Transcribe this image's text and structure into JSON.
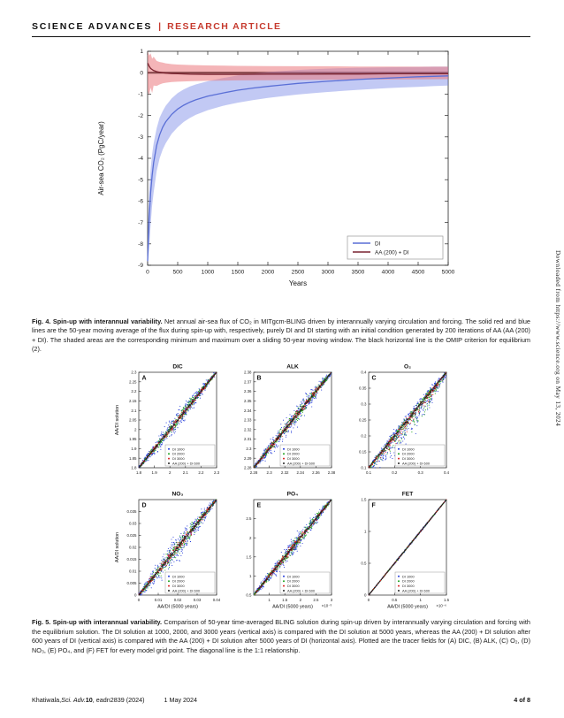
{
  "header": {
    "journal": "SCIENCE ADVANCES",
    "divider": "|",
    "article_type": "RESEARCH ARTICLE"
  },
  "side_note": "Downloaded from https://www.science.org on May 13, 2024",
  "fig4_caption": {
    "label": "Fig. 4. Spin-up with interannual variability.",
    "body": " Net annual air-sea flux of CO₂ in MITgcm-BLING driven by interannually varying circulation and forcing. The solid red and blue lines are the 50-year moving average of the flux during spin-up with, respectively, purely DI and DI starting with an initial condition generated by 200 iterations of AA (AA (200) + DI). The shaded areas are the corresponding minimum and maximum over a sliding 50-year moving window. The black horizontal line is the OMIP criterion for equilibrium (2)."
  },
  "fig5_caption": {
    "label": "Fig. 5. Spin-up with interannual variability.",
    "body": " Comparison of 50-year time-averaged BLING solution during spin-up driven by interannually varying circulation and forcing with the equilibrium solution. The DI solution at 1000, 2000, and 3000 years (vertical axis) is compared with the DI solution at 5000 years, whereas the AA (200) + DI solution after 600 years of DI (vertical axis) is compared with the AA (200) + DI solution after 5000 years of DI (horizontal axis). Plotted are the tracer fields for (A) DIC, (B) ALK, (C) O₂, (D) NO₃, (E) PO₄, and (F) FET for every model grid point. The diagonal line is the 1:1 relationship."
  },
  "footer": {
    "authors": "Khatiwala, ",
    "journal": "Sci. Adv.",
    "volume": " 10",
    "rest": ", eadn2839 (2024)",
    "date": "1 May 2024",
    "page": "4 of 8"
  },
  "chart_data": [
    {
      "id": "fig4",
      "type": "line",
      "title": "",
      "xlabel": "Years",
      "ylabel": "Air-sea CO₂ (PgC/year)",
      "xlim": [
        0,
        5000
      ],
      "ylim": [
        -9,
        1
      ],
      "xticks": [
        0,
        500,
        1000,
        1500,
        2000,
        2500,
        3000,
        3500,
        4000,
        4500,
        5000
      ],
      "yticks": [
        1,
        0,
        -1,
        -2,
        -3,
        -4,
        -5,
        -6,
        -7,
        -8,
        -9
      ],
      "hline": 0,
      "legend_position": "lower right",
      "series": [
        {
          "name": "DI",
          "color": "#5a6fd6",
          "band_color": "rgba(120,135,230,0.45)",
          "x": [
            0,
            25,
            50,
            75,
            100,
            150,
            200,
            250,
            300,
            400,
            500,
            600,
            700,
            800,
            1000,
            1250,
            1500,
            1750,
            2000,
            2250,
            2500,
            2750,
            3000,
            3250,
            3500,
            3750,
            4000,
            4250,
            4500,
            4750,
            5000
          ],
          "y": [
            -8.8,
            -6.8,
            -5.6,
            -4.8,
            -4.2,
            -3.4,
            -2.9,
            -2.55,
            -2.3,
            -1.95,
            -1.7,
            -1.52,
            -1.38,
            -1.27,
            -1.1,
            -0.95,
            -0.82,
            -0.72,
            -0.64,
            -0.57,
            -0.5,
            -0.45,
            -0.4,
            -0.36,
            -0.32,
            -0.28,
            -0.25,
            -0.22,
            -0.19,
            -0.17,
            -0.15
          ],
          "band_upper": [
            -7.6,
            -5.6,
            -4.5,
            -3.8,
            -3.3,
            -2.6,
            -2.1,
            -1.8,
            -1.55,
            -1.2,
            -0.95,
            -0.78,
            -0.65,
            -0.55,
            -0.4,
            -0.25,
            -0.13,
            -0.04,
            0.03,
            0.08,
            0.13,
            0.16,
            0.19,
            0.21,
            0.23,
            0.24,
            0.25,
            0.26,
            0.27,
            0.28,
            0.28
          ],
          "band_lower": [
            -9,
            -8.2,
            -7.1,
            -6.2,
            -5.6,
            -4.6,
            -4.0,
            -3.6,
            -3.3,
            -2.85,
            -2.55,
            -2.3,
            -2.12,
            -1.97,
            -1.75,
            -1.55,
            -1.4,
            -1.28,
            -1.18,
            -1.1,
            -1.02,
            -0.96,
            -0.9,
            -0.85,
            -0.8,
            -0.76,
            -0.72,
            -0.69,
            -0.66,
            -0.63,
            -0.6
          ]
        },
        {
          "name": "AA (200) + DI",
          "color": "#7a2430",
          "band_color": "rgba(235,120,125,0.55)",
          "x": [
            0,
            25,
            50,
            75,
            100,
            150,
            200,
            250,
            300,
            400,
            500,
            700,
            1000,
            1500,
            2000,
            2500,
            3000,
            3500,
            4000,
            4500,
            5000
          ],
          "y": [
            0.45,
            0.3,
            0.2,
            0.15,
            0.1,
            0.05,
            0.02,
            0,
            -0.02,
            -0.04,
            -0.05,
            -0.07,
            -0.08,
            -0.08,
            -0.07,
            -0.07,
            -0.06,
            -0.06,
            -0.05,
            -0.05,
            -0.05
          ],
          "band_upper": [
            1.0,
            0.8,
            0.9,
            0.65,
            0.75,
            0.55,
            0.5,
            0.47,
            0.44,
            0.4,
            0.38,
            0.36,
            0.34,
            0.32,
            0.31,
            0.3,
            0.3,
            0.29,
            0.29,
            0.28,
            0.28
          ],
          "band_lower": [
            -0.85,
            -1.05,
            -0.7,
            -0.95,
            -0.6,
            -0.62,
            -0.55,
            -0.5,
            -0.47,
            -0.44,
            -0.42,
            -0.4,
            -0.38,
            -0.36,
            -0.35,
            -0.34,
            -0.33,
            -0.32,
            -0.32,
            -0.31,
            -0.3
          ]
        }
      ]
    },
    {
      "id": "fig5",
      "type": "scatter",
      "shared": {
        "ylabel": "AA/DI solution",
        "xlabel": "AA/DI (5000 years)",
        "diagonal": "1:1 line",
        "series": [
          {
            "name": "DI 1000",
            "color": "#2038d8",
            "n": 500,
            "noise": 0.09
          },
          {
            "name": "DI 2000",
            "color": "#18a018",
            "n": 380,
            "noise": 0.055
          },
          {
            "name": "DI 3000",
            "color": "#d82020",
            "n": 300,
            "noise": 0.034
          },
          {
            "name": "AA (200) + DI 600",
            "color": "#222222",
            "n": 260,
            "noise": 0.013
          }
        ]
      },
      "panels": [
        {
          "letter": "A",
          "title": "DIC",
          "lim": [
            1.8,
            2.3
          ],
          "xticks": [
            1.8,
            1.9,
            2,
            2.1,
            2.2,
            2.3
          ],
          "yticks": [
            1.8,
            1.85,
            1.9,
            1.95,
            2,
            2.05,
            2.1,
            2.15,
            2.2,
            2.25,
            2.3
          ],
          "spread": 1.0,
          "skew": 0,
          "seed": 7,
          "ylabel": true,
          "xlabel": false,
          "x_exp": ""
        },
        {
          "letter": "B",
          "title": "ALK",
          "lim": [
            2.28,
            2.38
          ],
          "xticks": [
            2.28,
            2.3,
            2.32,
            2.34,
            2.36,
            2.38
          ],
          "yticks": [
            2.28,
            2.29,
            2.3,
            2.31,
            2.32,
            2.33,
            2.34,
            2.35,
            2.36,
            2.37,
            2.38
          ],
          "spread": 1.15,
          "skew": 0,
          "seed": 13,
          "ylabel": false,
          "xlabel": false,
          "x_exp": ""
        },
        {
          "letter": "C",
          "title": "O₂",
          "lim": [
            0.1,
            0.4
          ],
          "xticks": [
            0.1,
            0.2,
            0.3,
            0.4
          ],
          "yticks": [
            0.1,
            0.15,
            0.2,
            0.25,
            0.3,
            0.35,
            0.4
          ],
          "spread": 1.7,
          "skew": 0.55,
          "seed": 21,
          "ylabel": false,
          "xlabel": false,
          "x_exp": ""
        },
        {
          "letter": "D",
          "title": "NO₃",
          "lim": [
            0,
            0.04
          ],
          "xticks": [
            0,
            0.01,
            0.02,
            0.03,
            0.04
          ],
          "yticks": [
            0,
            0.005,
            0.01,
            0.015,
            0.02,
            0.025,
            0.03,
            0.035
          ],
          "spread": 1.45,
          "skew": 0,
          "seed": 29,
          "ylabel": true,
          "xlabel": true,
          "x_exp": ""
        },
        {
          "letter": "E",
          "title": "PO₄",
          "lim": [
            0.5,
            3
          ],
          "xticks": [
            1,
            1.5,
            2,
            2.5,
            3
          ],
          "yticks": [
            0.5,
            1,
            1.5,
            2,
            2.5
          ],
          "spread": 1.0,
          "skew": 0,
          "seed": 37,
          "ylabel": false,
          "xlabel": true,
          "x_exp": "×10⁻³"
        },
        {
          "letter": "F",
          "title": "FET",
          "lim": [
            0,
            1.5
          ],
          "xticks": [
            0,
            0.5,
            1,
            1.5
          ],
          "yticks": [
            0,
            0.5,
            1,
            1.5
          ],
          "spread": 0.12,
          "skew": 0,
          "seed": 45,
          "ylabel": false,
          "xlabel": true,
          "x_exp": "×10⁻⁶"
        }
      ]
    }
  ]
}
